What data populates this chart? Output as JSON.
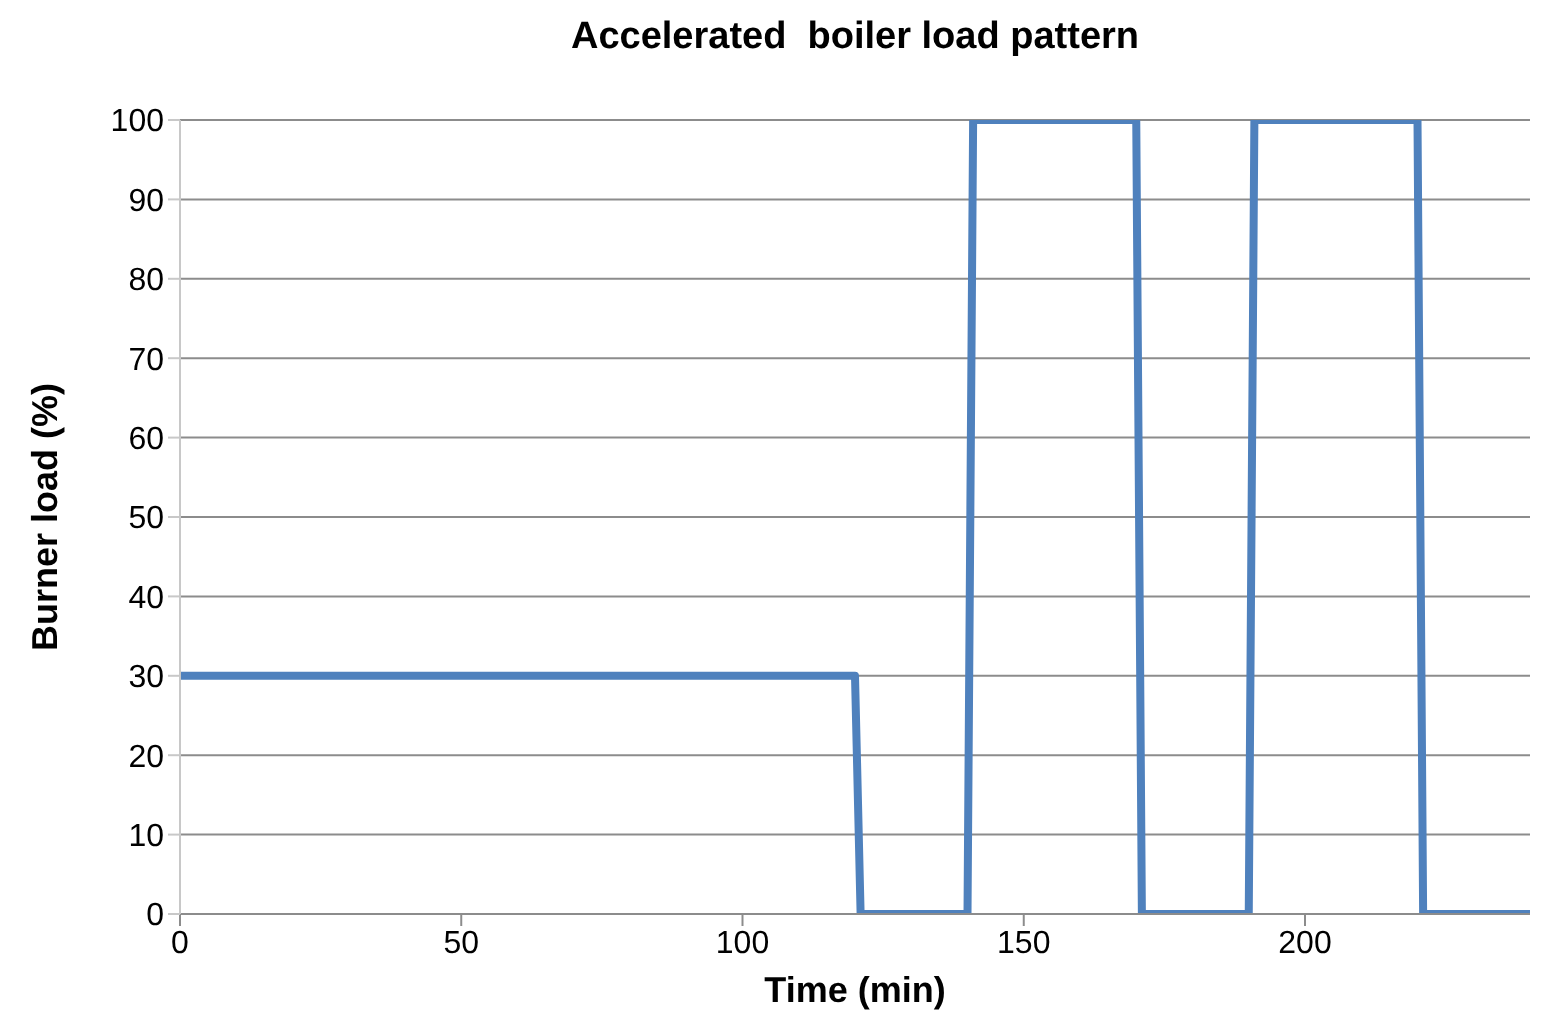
{
  "chart_data": {
    "type": "line",
    "title": "Accelerated  boiler load pattern",
    "xlabel": "Time (min)",
    "ylabel": "Burner load (%)",
    "x": [
      0,
      120,
      121,
      140,
      141,
      170,
      171,
      190,
      191,
      220,
      221,
      240
    ],
    "series": [
      {
        "color": "#4f81bd",
        "values": [
          30,
          30,
          0,
          0,
          100,
          100,
          0,
          0,
          100,
          100,
          0,
          0
        ]
      }
    ],
    "xlim": [
      0,
      240
    ],
    "xticks": [
      0,
      50,
      100,
      150,
      200
    ],
    "ylim": [
      0,
      100
    ],
    "yticks": [
      0,
      10,
      20,
      30,
      40,
      50,
      60,
      70,
      80,
      90,
      100
    ],
    "grid": "y",
    "marker": "none",
    "line_style": "solid",
    "legend": false
  }
}
